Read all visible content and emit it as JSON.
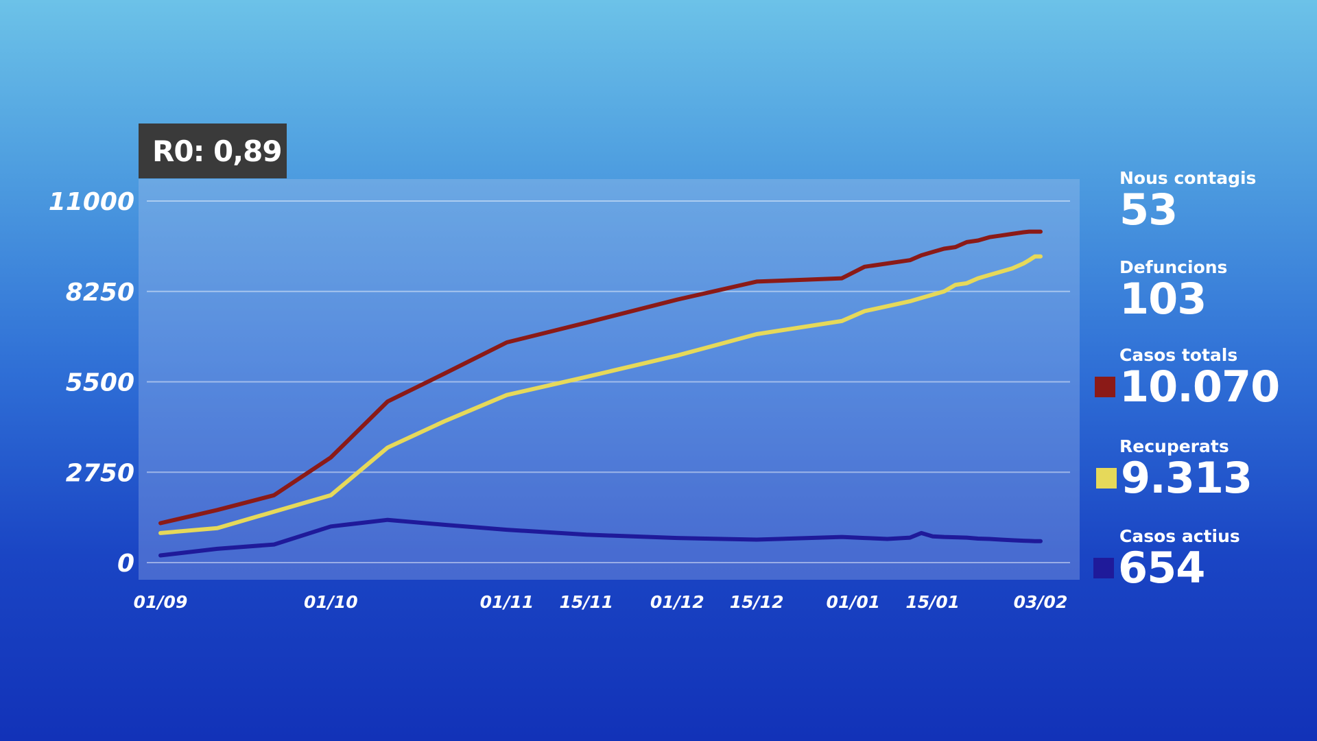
{
  "r0": {
    "label": "R0: 0,89"
  },
  "stats": [
    {
      "label": "Nous contagis",
      "value": "53"
    },
    {
      "label": "Defuncions",
      "value": "103"
    },
    {
      "label": "Casos totals",
      "value": "10.070",
      "color": "#8b1a17"
    },
    {
      "label": "Recuperats",
      "value": "9.313",
      "color": "#e6d95a"
    },
    {
      "label": "Casos actius",
      "value": "654",
      "color": "#1f1a9a"
    }
  ],
  "chart_data": {
    "type": "line",
    "ylim": [
      0,
      11000
    ],
    "yticks": [
      "11000",
      "8250",
      "5500",
      "2750",
      "0"
    ],
    "ytick_values": [
      11000,
      8250,
      5500,
      2750,
      0
    ],
    "xticks": [
      "01/09",
      "01/10",
      "01/11",
      "15/11",
      "01/12",
      "15/12",
      "01/01",
      "15/01",
      "03/02"
    ],
    "xtick_days": [
      0,
      30,
      61,
      75,
      91,
      105,
      122,
      136,
      155
    ],
    "grid": true,
    "series": [
      {
        "color": "#8b1a17",
        "x": [
          0,
          10,
          20,
          30,
          40,
          50,
          61,
          75,
          91,
          105,
          120,
          124,
          128,
          132,
          134,
          136,
          138,
          140,
          142,
          144,
          146,
          148,
          150,
          152,
          153,
          154,
          155
        ],
        "values": [
          1200,
          1600,
          2050,
          3200,
          4900,
          5750,
          6700,
          7300,
          8000,
          8550,
          8650,
          9000,
          9100,
          9200,
          9350,
          9450,
          9550,
          9600,
          9750,
          9800,
          9900,
          9950,
          10000,
          10050,
          10070,
          10070,
          10070
        ]
      },
      {
        "color": "#e6d95a",
        "x": [
          0,
          10,
          20,
          30,
          40,
          50,
          61,
          75,
          91,
          105,
          120,
          124,
          128,
          132,
          134,
          136,
          138,
          140,
          142,
          144,
          146,
          148,
          150,
          152,
          153,
          154,
          155
        ],
        "values": [
          900,
          1050,
          1550,
          2050,
          3500,
          4300,
          5100,
          5650,
          6300,
          6950,
          7350,
          7650,
          7800,
          7950,
          8050,
          8150,
          8250,
          8450,
          8500,
          8650,
          8750,
          8850,
          8950,
          9100,
          9200,
          9313,
          9313
        ]
      },
      {
        "color": "#1f1a9a",
        "x": [
          0,
          10,
          20,
          30,
          40,
          50,
          61,
          75,
          91,
          105,
          120,
          124,
          128,
          132,
          134,
          136,
          138,
          140,
          142,
          144,
          146,
          148,
          150,
          152,
          153,
          154,
          155
        ],
        "values": [
          220,
          420,
          550,
          1100,
          1300,
          1150,
          1000,
          850,
          750,
          700,
          780,
          750,
          720,
          760,
          900,
          800,
          780,
          770,
          760,
          730,
          720,
          700,
          680,
          665,
          660,
          654,
          654
        ]
      }
    ]
  }
}
